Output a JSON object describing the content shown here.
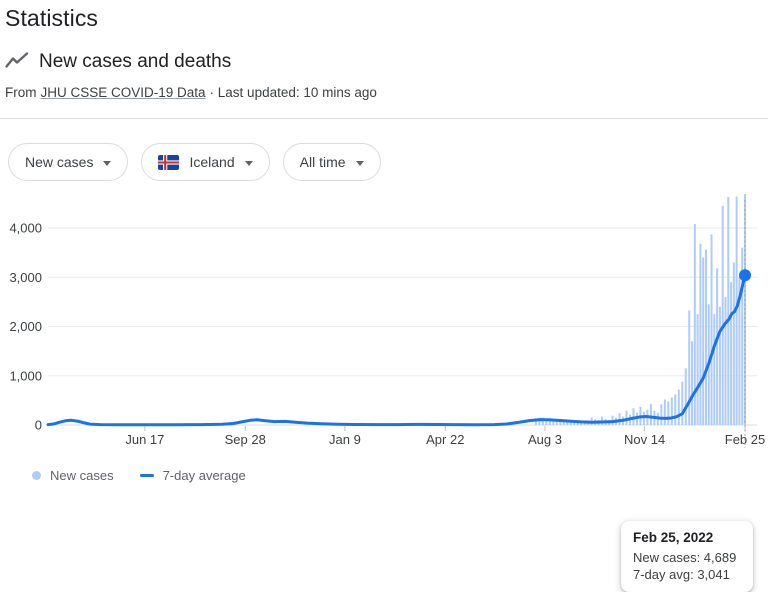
{
  "page": {
    "title": "Statistics"
  },
  "card": {
    "heading": "New cases and deaths",
    "source_prefix": "From",
    "source_link": "JHU CSSE COVID-19 Data",
    "source_suffix": "· Last updated: 10 mins ago"
  },
  "chips": [
    {
      "label": "New cases"
    },
    {
      "label": "Iceland",
      "icon": "iceland-flag"
    },
    {
      "label": "All time"
    }
  ],
  "tooltip": {
    "date": "Feb 25, 2022",
    "new_cases_line": "New cases: 4,689",
    "avg_line": "7-day avg: 3,041"
  },
  "legend": [
    {
      "label": "New cases",
      "color": "#aecbfa",
      "marker": "dot"
    },
    {
      "label": "7-day average",
      "color": "#1a73e8",
      "marker": "dash"
    }
  ],
  "chart_data": {
    "type": "bar+line",
    "title": "New cases and deaths — Iceland — All time",
    "grid": true,
    "colors": {
      "bars": "#aecbfa",
      "line": "#1a73e8",
      "grid": "#e8eaed",
      "zero_line": "#dadce0",
      "tick": "#bdc1c6",
      "axis_text": "#3c4043",
      "crosshair": "#9aa0a6"
    },
    "x_axis": {
      "ticks": [
        {
          "label": "Jun 17",
          "f": 0.139
        },
        {
          "label": "Sep 28",
          "f": 0.283
        },
        {
          "label": "Jan 9",
          "f": 0.426
        },
        {
          "label": "Apr 22",
          "f": 0.57
        },
        {
          "label": "Aug 3",
          "f": 0.713
        },
        {
          "label": "Nov 14",
          "f": 0.856
        },
        {
          "label": "Feb 25",
          "f": 1.0
        }
      ]
    },
    "y_axis": {
      "ticks": [
        {
          "label": "0",
          "v": 0
        },
        {
          "label": "1,000",
          "v": 1000
        },
        {
          "label": "2,000",
          "v": 2000
        },
        {
          "label": "3,000",
          "v": 3000
        },
        {
          "label": "4,000",
          "v": 4000
        }
      ],
      "max": 4800
    },
    "bar_series": {
      "name": "New cases",
      "points": [
        [
          0.7,
          125
        ],
        [
          0.705,
          145
        ],
        [
          0.71,
          150
        ],
        [
          0.715,
          130
        ],
        [
          0.72,
          140
        ],
        [
          0.725,
          115
        ],
        [
          0.73,
          105
        ],
        [
          0.735,
          100
        ],
        [
          0.74,
          95
        ],
        [
          0.745,
          90
        ],
        [
          0.75,
          85
        ],
        [
          0.755,
          80
        ],
        [
          0.76,
          72
        ],
        [
          0.765,
          68
        ],
        [
          0.77,
          80
        ],
        [
          0.775,
          95
        ],
        [
          0.78,
          150
        ],
        [
          0.785,
          115
        ],
        [
          0.79,
          100
        ],
        [
          0.795,
          170
        ],
        [
          0.8,
          125
        ],
        [
          0.805,
          105
        ],
        [
          0.81,
          190
        ],
        [
          0.815,
          150
        ],
        [
          0.82,
          240
        ],
        [
          0.825,
          170
        ],
        [
          0.83,
          290
        ],
        [
          0.835,
          210
        ],
        [
          0.84,
          340
        ],
        [
          0.845,
          250
        ],
        [
          0.85,
          370
        ],
        [
          0.855,
          270
        ],
        [
          0.86,
          310
        ],
        [
          0.865,
          430
        ],
        [
          0.87,
          290
        ],
        [
          0.875,
          250
        ],
        [
          0.88,
          420
        ],
        [
          0.885,
          520
        ],
        [
          0.89,
          480
        ],
        [
          0.895,
          560
        ],
        [
          0.9,
          620
        ],
        [
          0.905,
          720
        ],
        [
          0.91,
          880
        ],
        [
          0.915,
          1150
        ],
        [
          0.92,
          2325
        ],
        [
          0.924,
          1700
        ],
        [
          0.928,
          4080
        ],
        [
          0.932,
          2250
        ],
        [
          0.936,
          3680
        ],
        [
          0.94,
          3400
        ],
        [
          0.944,
          3560
        ],
        [
          0.948,
          2450
        ],
        [
          0.952,
          3870
        ],
        [
          0.956,
          2250
        ],
        [
          0.96,
          3180
        ],
        [
          0.964,
          2400
        ],
        [
          0.968,
          4450
        ],
        [
          0.972,
          2600
        ],
        [
          0.976,
          4630
        ],
        [
          0.98,
          2900
        ],
        [
          0.984,
          3300
        ],
        [
          0.988,
          4640
        ],
        [
          0.992,
          3000
        ],
        [
          0.996,
          3600
        ],
        [
          1.0,
          4689
        ]
      ]
    },
    "line_series": {
      "name": "7-day average",
      "points": [
        [
          0.0,
          8
        ],
        [
          0.008,
          20
        ],
        [
          0.016,
          55
        ],
        [
          0.025,
          85
        ],
        [
          0.033,
          95
        ],
        [
          0.042,
          80
        ],
        [
          0.05,
          50
        ],
        [
          0.06,
          18
        ],
        [
          0.075,
          8
        ],
        [
          0.1,
          5
        ],
        [
          0.14,
          4
        ],
        [
          0.18,
          5
        ],
        [
          0.22,
          8
        ],
        [
          0.25,
          14
        ],
        [
          0.266,
          30
        ],
        [
          0.278,
          62
        ],
        [
          0.29,
          96
        ],
        [
          0.3,
          106
        ],
        [
          0.312,
          88
        ],
        [
          0.325,
          70
        ],
        [
          0.34,
          74
        ],
        [
          0.355,
          56
        ],
        [
          0.372,
          38
        ],
        [
          0.392,
          26
        ],
        [
          0.415,
          16
        ],
        [
          0.44,
          11
        ],
        [
          0.47,
          8
        ],
        [
          0.5,
          9
        ],
        [
          0.53,
          13
        ],
        [
          0.555,
          11
        ],
        [
          0.58,
          8
        ],
        [
          0.61,
          7
        ],
        [
          0.64,
          9
        ],
        [
          0.658,
          20
        ],
        [
          0.675,
          52
        ],
        [
          0.692,
          92
        ],
        [
          0.706,
          110
        ],
        [
          0.72,
          104
        ],
        [
          0.735,
          92
        ],
        [
          0.75,
          76
        ],
        [
          0.765,
          62
        ],
        [
          0.78,
          56
        ],
        [
          0.795,
          60
        ],
        [
          0.81,
          70
        ],
        [
          0.825,
          96
        ],
        [
          0.838,
          135
        ],
        [
          0.85,
          165
        ],
        [
          0.858,
          172
        ],
        [
          0.868,
          156
        ],
        [
          0.878,
          140
        ],
        [
          0.886,
          134
        ],
        [
          0.894,
          142
        ],
        [
          0.902,
          168
        ],
        [
          0.91,
          230
        ],
        [
          0.918,
          420
        ],
        [
          0.925,
          600
        ],
        [
          0.932,
          760
        ],
        [
          0.94,
          950
        ],
        [
          0.948,
          1250
        ],
        [
          0.956,
          1600
        ],
        [
          0.964,
          1900
        ],
        [
          0.971,
          2050
        ],
        [
          0.977,
          2150
        ],
        [
          0.981,
          2260
        ],
        [
          0.985,
          2300
        ],
        [
          0.989,
          2420
        ],
        [
          0.993,
          2620
        ],
        [
          0.996,
          2800
        ],
        [
          1.0,
          3041
        ]
      ]
    },
    "crosshair": {
      "f": 1.0,
      "style": "dotted",
      "marker_value": 3041
    },
    "last_point": {
      "date": "Feb 25, 2022",
      "new_cases": 4689,
      "seven_day_avg": 3041
    }
  }
}
